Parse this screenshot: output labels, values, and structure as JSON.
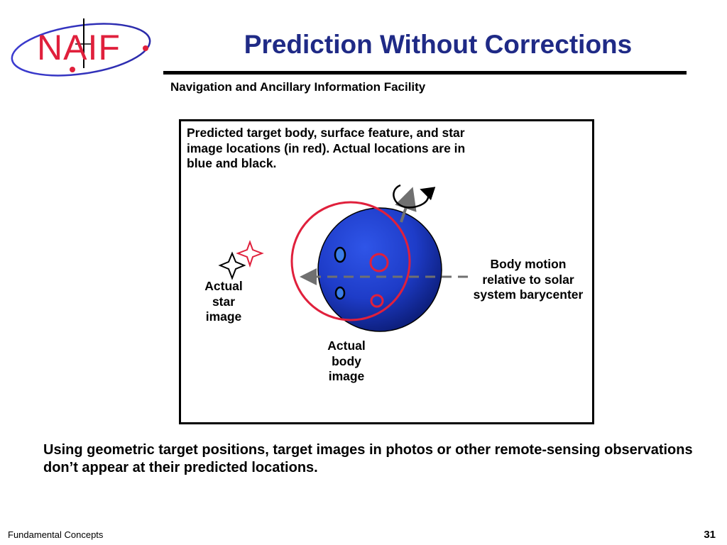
{
  "header": {
    "logo_text": "NAIF",
    "title": "Prediction Without Corrections",
    "subtitle": "Navigation and Ancillary Information Facility"
  },
  "diagram": {
    "caption": "Predicted target body, surface feature, and star image locations (in red). Actual locations are in blue and black.",
    "labels": {
      "actual_star_image": [
        "Actual",
        "star",
        "image"
      ],
      "actual_body_image": [
        "Actual",
        "body",
        "image"
      ],
      "body_motion": [
        "Body motion",
        "relative to solar",
        "system barycenter"
      ]
    },
    "colors": {
      "predicted": "#e0203c",
      "actual_body": "#1e3cc8",
      "actual_body_dark": "#0a1a70",
      "motion_arrow": "#707070",
      "actual_star": "#000000"
    },
    "icons": [
      "four-point-star-icon",
      "rotation-arrow-icon",
      "motion-arrow-icon"
    ]
  },
  "conclusion": "Using geometric target positions, target images in photos or other remote-sensing observations don’t appear at their predicted locations.",
  "footer": {
    "left": "Fundamental Concepts",
    "page_number": "31"
  }
}
